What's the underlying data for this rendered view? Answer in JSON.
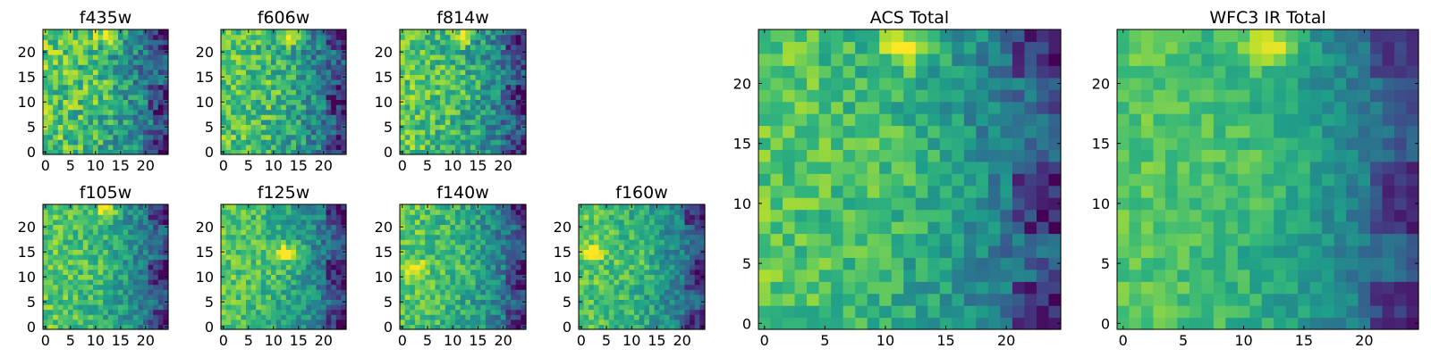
{
  "figure": {
    "description_colormap": "viridis",
    "colors": {
      "low": "#440154",
      "mid": "#21918c",
      "high": "#fde725"
    }
  },
  "chart_data": [
    {
      "type": "heatmap",
      "title": "f435w",
      "grid_size": 25,
      "xlim": [
        0,
        24
      ],
      "ylim": [
        0,
        24
      ],
      "xticks": [
        0,
        5,
        10,
        15,
        20
      ],
      "yticks": [
        0,
        5,
        10,
        15,
        20
      ],
      "bright_center": [
        12,
        23
      ],
      "noise": 0.22,
      "seed": 11
    },
    {
      "type": "heatmap",
      "title": "f606w",
      "grid_size": 25,
      "xlim": [
        0,
        24
      ],
      "ylim": [
        0,
        24
      ],
      "xticks": [
        0,
        5,
        10,
        15,
        20
      ],
      "yticks": [
        0,
        5,
        10,
        15,
        20
      ],
      "bright_center": [
        13,
        23
      ],
      "noise": 0.2,
      "seed": 23
    },
    {
      "type": "heatmap",
      "title": "f814w",
      "grid_size": 25,
      "xlim": [
        0,
        24
      ],
      "ylim": [
        0,
        24
      ],
      "xticks": [
        0,
        5,
        10,
        15,
        20
      ],
      "yticks": [
        0,
        5,
        10,
        15,
        20
      ],
      "bright_center": [
        12,
        23
      ],
      "noise": 0.2,
      "seed": 37
    },
    {
      "type": "heatmap",
      "title": "f105w",
      "grid_size": 25,
      "xlim": [
        0,
        24
      ],
      "ylim": [
        0,
        24
      ],
      "xticks": [
        0,
        5,
        10,
        15,
        20
      ],
      "yticks": [
        0,
        5,
        10,
        15,
        20
      ],
      "bright_center": [
        12,
        23
      ],
      "noise": 0.16,
      "seed": 41
    },
    {
      "type": "heatmap",
      "title": "f125w",
      "grid_size": 25,
      "xlim": [
        0,
        24
      ],
      "ylim": [
        0,
        24
      ],
      "xticks": [
        0,
        5,
        10,
        15,
        20
      ],
      "yticks": [
        0,
        5,
        10,
        15,
        20
      ],
      "bright_center": [
        13,
        15
      ],
      "noise": 0.16,
      "seed": 53
    },
    {
      "type": "heatmap",
      "title": "f140w",
      "grid_size": 25,
      "xlim": [
        0,
        24
      ],
      "ylim": [
        0,
        24
      ],
      "xticks": [
        0,
        5,
        10,
        15,
        20
      ],
      "yticks": [
        0,
        5,
        10,
        15,
        20
      ],
      "bright_center": [
        2,
        12
      ],
      "noise": 0.16,
      "seed": 67
    },
    {
      "type": "heatmap",
      "title": "f160w",
      "grid_size": 25,
      "xlim": [
        0,
        24
      ],
      "ylim": [
        0,
        24
      ],
      "xticks": [
        0,
        5,
        10,
        15,
        20
      ],
      "yticks": [
        0,
        5,
        10,
        15,
        20
      ],
      "bright_center": [
        2,
        15
      ],
      "noise": 0.15,
      "seed": 79
    },
    {
      "type": "heatmap",
      "title": "ACS Total",
      "grid_size": 25,
      "xlim": [
        0,
        24
      ],
      "ylim": [
        0,
        24
      ],
      "xticks": [
        0,
        5,
        10,
        15,
        20
      ],
      "yticks": [
        0,
        5,
        10,
        15,
        20
      ],
      "bright_center": [
        12,
        23
      ],
      "noise": 0.14,
      "seed": 97
    },
    {
      "type": "heatmap",
      "title": "WFC3 IR Total",
      "grid_size": 25,
      "xlim": [
        0,
        24
      ],
      "ylim": [
        0,
        24
      ],
      "xticks": [
        0,
        5,
        10,
        15,
        20
      ],
      "yticks": [
        0,
        5,
        10,
        15,
        20
      ],
      "bright_center": [
        12,
        23
      ],
      "noise": 0.1,
      "seed": 113
    }
  ]
}
